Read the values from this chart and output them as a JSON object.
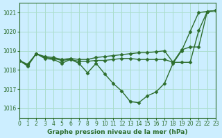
{
  "title": "Graphe pression niveau de la mer (hPa)",
  "bg_color": "#cceeff",
  "grid_color": "#aaddcc",
  "line_color": "#2d6e2d",
  "xlim": [
    0,
    23
  ],
  "ylim": [
    1015.5,
    1021.5
  ],
  "yticks": [
    1016,
    1017,
    1018,
    1019,
    1020,
    1021
  ],
  "xticks": [
    0,
    1,
    2,
    3,
    4,
    5,
    6,
    7,
    8,
    9,
    10,
    11,
    12,
    13,
    14,
    15,
    16,
    17,
    18,
    19,
    20,
    21,
    22,
    23
  ],
  "line_main_x": [
    0,
    1,
    2,
    3,
    4,
    5,
    6,
    7,
    8,
    9,
    10,
    11,
    12,
    13,
    14,
    15,
    16,
    17,
    18,
    19,
    20,
    21,
    22,
    23
  ],
  "line_main_y": [
    1018.5,
    1018.2,
    1018.85,
    1018.6,
    1018.55,
    1018.35,
    1018.55,
    1018.35,
    1017.85,
    1018.35,
    1017.8,
    1017.3,
    1016.9,
    1016.35,
    1016.3,
    1016.65,
    1016.85,
    1017.3,
    1018.35,
    1019.0,
    1020.0,
    1021.0,
    1021.05,
    1021.1
  ],
  "line_upper_x": [
    0,
    1,
    2,
    3,
    4,
    5,
    6,
    7,
    8,
    9,
    10,
    11,
    12,
    13,
    14,
    15,
    16,
    17,
    18,
    19,
    20,
    21,
    22,
    23
  ],
  "line_upper_y": [
    1018.5,
    1018.3,
    1018.85,
    1018.7,
    1018.65,
    1018.55,
    1018.6,
    1018.55,
    1018.55,
    1018.65,
    1018.7,
    1018.75,
    1018.8,
    1018.85,
    1018.9,
    1018.9,
    1018.95,
    1019.0,
    1018.4,
    1019.05,
    1019.2,
    1019.2,
    1021.05,
    1021.1
  ],
  "line_mid_x": [
    0,
    1,
    2,
    3,
    4,
    5,
    6,
    7,
    8,
    9,
    10,
    11,
    12,
    13,
    14,
    15,
    16,
    17,
    18,
    19,
    20,
    21,
    22,
    23
  ],
  "line_mid_y": [
    1018.5,
    1018.25,
    1018.85,
    1018.65,
    1018.6,
    1018.5,
    1018.55,
    1018.45,
    1018.45,
    1018.5,
    1018.5,
    1018.55,
    1018.6,
    1018.6,
    1018.55,
    1018.55,
    1018.55,
    1018.55,
    1018.4,
    1018.4,
    1018.4,
    1020.05,
    1021.05,
    1021.1
  ],
  "marker": "D",
  "markersize": 2.5,
  "linewidth": 1.0
}
